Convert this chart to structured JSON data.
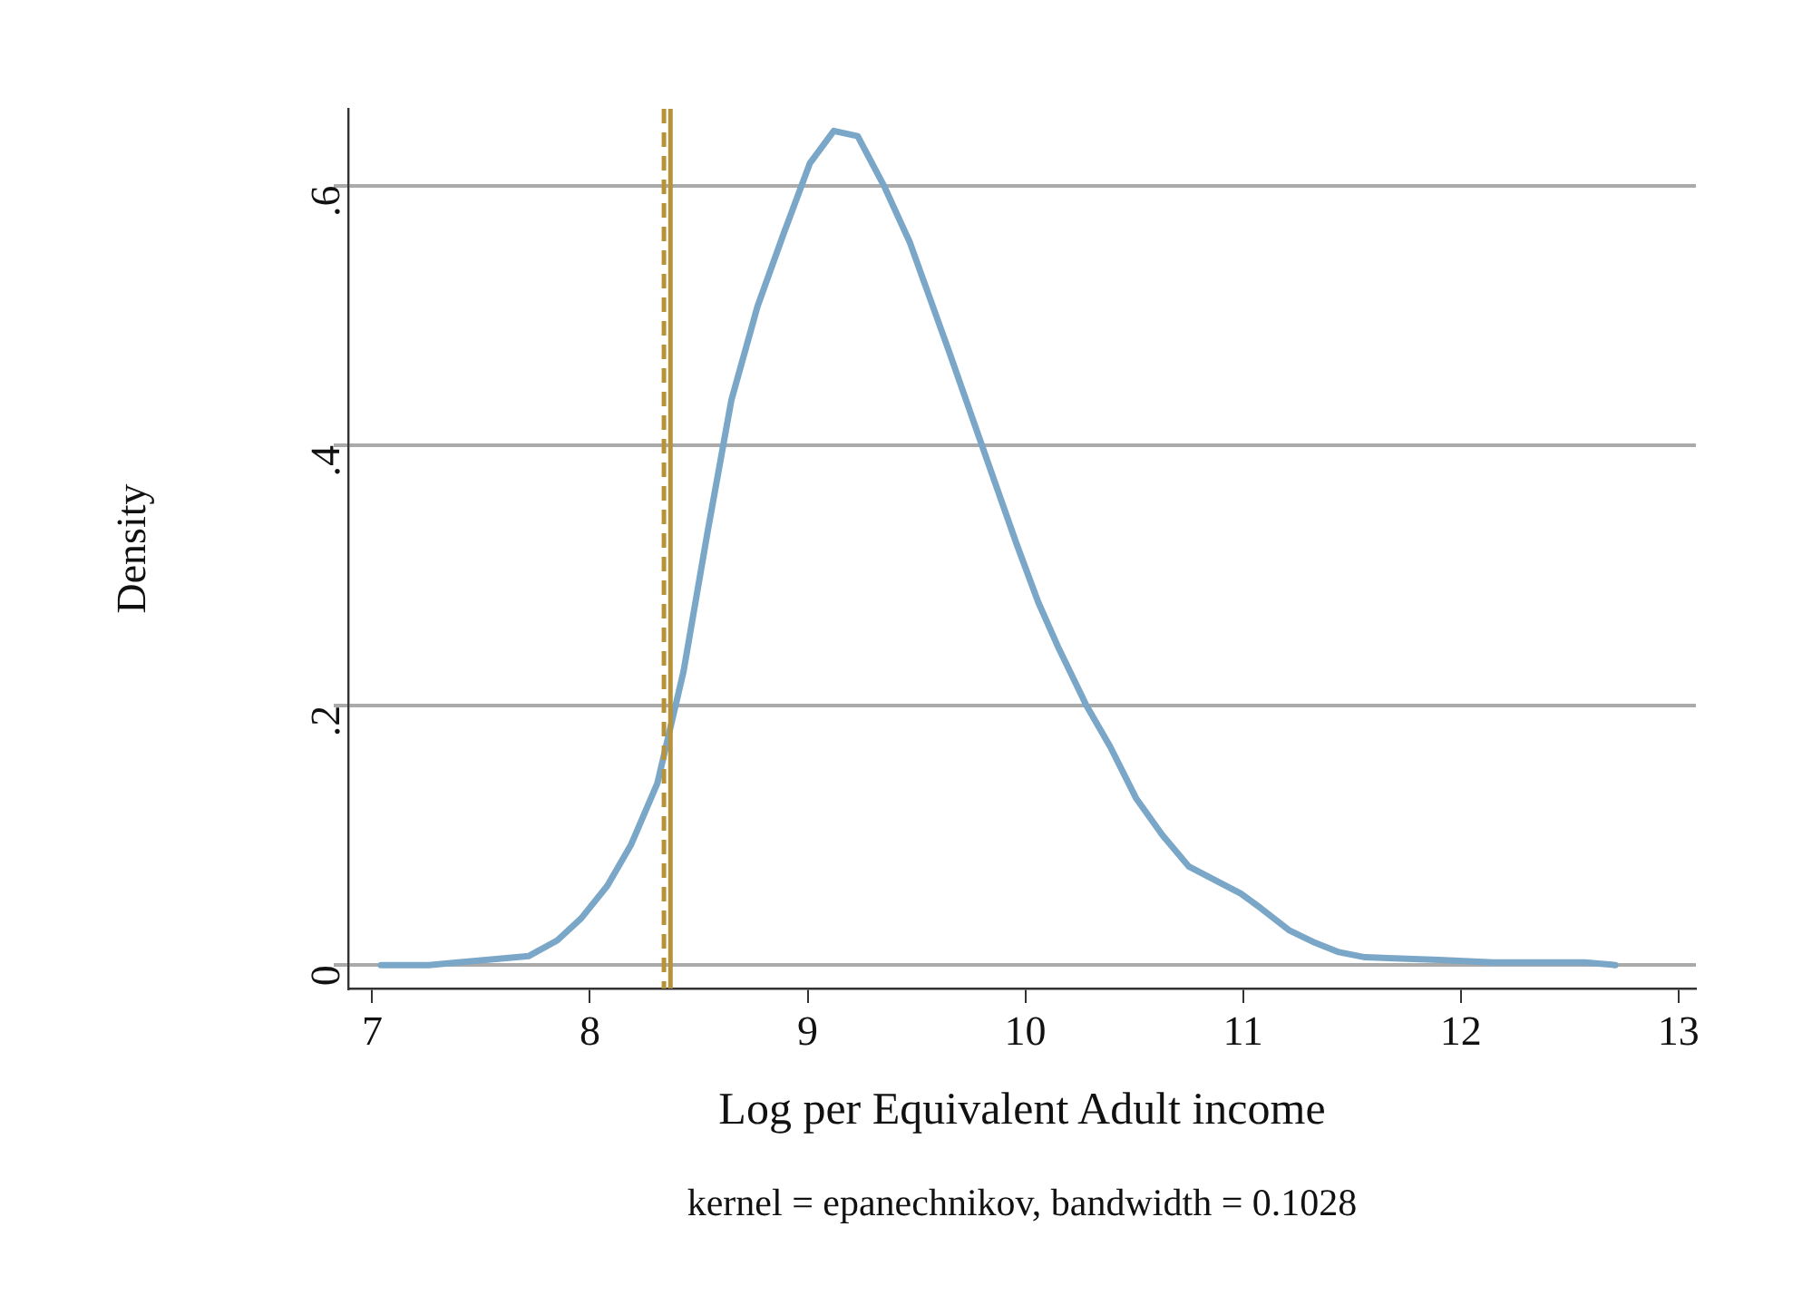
{
  "chart_data": {
    "type": "line",
    "xlabel": "Log per Equivalent Adult income",
    "ylabel": "Density",
    "annotations": [
      "kernel = epanechnikov, bandwidth = 0.1028"
    ],
    "series": [
      {
        "color": "#7aa7c7",
        "x": [
          7.04,
          7.26,
          7.72,
          7.85,
          7.96,
          8.08,
          8.19,
          8.31,
          8.43,
          8.54,
          8.65,
          8.77,
          8.89,
          9.01,
          9.12,
          9.23,
          9.35,
          9.47,
          9.65,
          9.79,
          9.96,
          10.06,
          10.15,
          10.28,
          10.39,
          10.51,
          10.63,
          10.75,
          10.99,
          11.08,
          11.21,
          11.32,
          11.44,
          11.56,
          11.9,
          12.15,
          12.57,
          12.71
        ],
        "values": [
          0,
          0,
          0.007,
          0.019,
          0.036,
          0.061,
          0.093,
          0.14,
          0.226,
          0.333,
          0.435,
          0.507,
          0.563,
          0.617,
          0.642,
          0.638,
          0.6,
          0.556,
          0.472,
          0.405,
          0.324,
          0.279,
          0.245,
          0.2,
          0.168,
          0.128,
          0.1,
          0.076,
          0.055,
          0.044,
          0.027,
          0.018,
          0.01,
          0.006,
          0.004,
          0.002,
          0.002,
          0
        ]
      }
    ],
    "ref_lines": [
      {
        "axis": "x",
        "value": 8.34,
        "color": "#b8923a",
        "line_style": "dashed"
      },
      {
        "axis": "x",
        "value": 8.37,
        "color": "#b8923a",
        "line_style": "solid"
      }
    ],
    "xlim": [
      6.89,
      13.08
    ],
    "xticks": [
      7,
      8,
      9,
      10,
      11,
      12,
      13
    ],
    "ylim": [
      -0.018,
      0.659
    ],
    "yticks": [
      {
        "value": 0,
        "label": "0"
      },
      {
        "value": 0.2,
        "label": ".2"
      },
      {
        "value": 0.4,
        "label": ".4"
      },
      {
        "value": 0.6,
        "label": ".6"
      }
    ],
    "grid": "y",
    "legend": false,
    "marker": "none",
    "line_style": "solid"
  }
}
